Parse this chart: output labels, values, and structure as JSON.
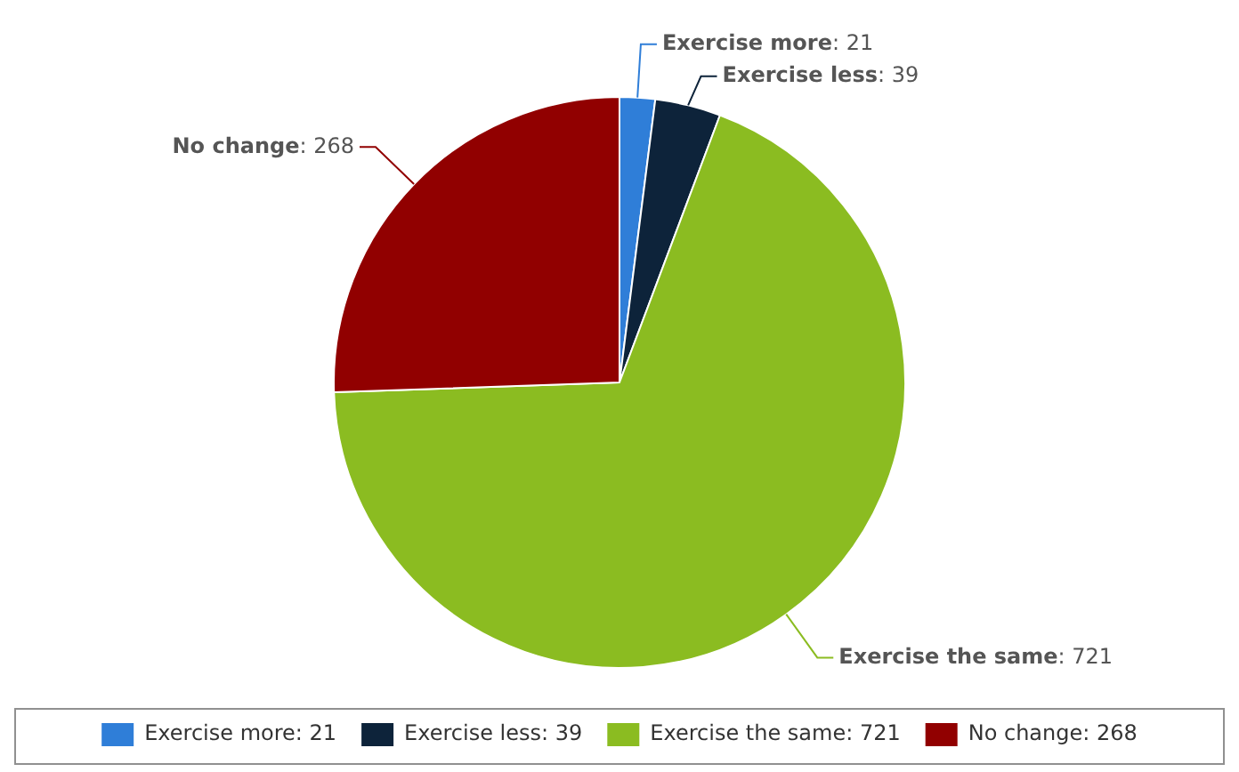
{
  "chart_data": {
    "type": "pie",
    "categories": [
      "Exercise more",
      "Exercise less",
      "Exercise the same",
      "No change"
    ],
    "values": [
      21,
      39,
      721,
      268
    ],
    "value_labels": [
      ": 21",
      ": 39",
      ": 721",
      ": 268"
    ],
    "colors": [
      "#2f7ed8",
      "#0d233a",
      "#8bbc21",
      "#910000"
    ],
    "legend": "bottom"
  }
}
